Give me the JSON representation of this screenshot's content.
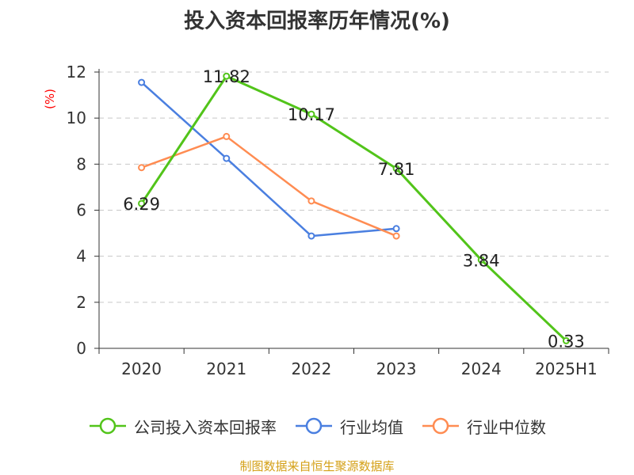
{
  "title": "投入资本回报率历年情况(%)",
  "source": "制图数据来自恒生聚源数据库",
  "colors": {
    "company": "#52c41a",
    "industry_avg": "#4a7fe0",
    "industry_median": "#ff8c52",
    "axis_unit": "#ff0000",
    "grid": "#c8c8c8",
    "source": "#d4a017"
  },
  "chart_data": {
    "type": "line",
    "title": "投入资本回报率历年情况(%)",
    "ylabel": "(%)",
    "categories": [
      "2020",
      "2021",
      "2022",
      "2023",
      "2024",
      "2025H1"
    ],
    "ylim": [
      0,
      12
    ],
    "yticks": [
      0,
      2,
      4,
      6,
      8,
      10,
      12
    ],
    "grid": "horizontal dashed",
    "legend": "bottom",
    "series": [
      {
        "name": "公司投入资本回报率",
        "values": [
          6.29,
          11.82,
          10.17,
          7.81,
          3.84,
          0.33
        ],
        "labels": [
          "6.29",
          "11.82",
          "10.17",
          "7.81",
          "3.84",
          "0.33"
        ],
        "color": "#52c41a"
      },
      {
        "name": "行业均值",
        "values": [
          11.55,
          8.25,
          4.88,
          5.2,
          null,
          null
        ],
        "color": "#4a7fe0"
      },
      {
        "name": "行业中位数",
        "values": [
          7.85,
          9.2,
          6.4,
          4.88,
          null,
          null
        ],
        "color": "#ff8c52"
      }
    ]
  }
}
